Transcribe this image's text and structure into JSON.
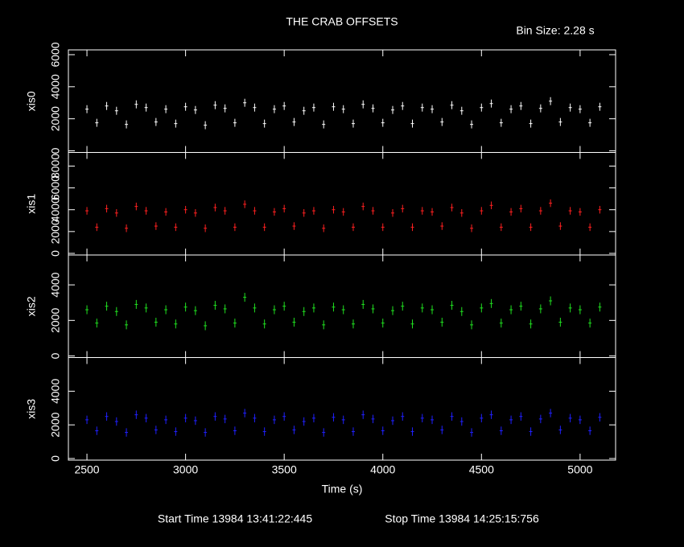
{
  "title": "THE CRAB OFFSETS",
  "bin_size": "Bin Size: 2.28 s",
  "start_time": "Start Time 13984 13:41:22:445",
  "stop_time": "Stop Time 13984 14:25:15:756",
  "chart_data": [
    {
      "type": "errorbar",
      "ylabel": "xis0",
      "color": "#ffffff",
      "ylim": [
        -100,
        6300
      ],
      "yticks": [
        0,
        2000,
        4000,
        6000
      ],
      "error": 250,
      "x": [
        2500,
        2550,
        2600,
        2650,
        2700,
        2750,
        2800,
        2850,
        2900,
        2950,
        3000,
        3050,
        3100,
        3150,
        3200,
        3250,
        3300,
        3350,
        3400,
        3450,
        3500,
        3550,
        3600,
        3650,
        3700,
        3750,
        3800,
        3850,
        3900,
        3950,
        4000,
        4050,
        4100,
        4150,
        4200,
        4250,
        4300,
        4350,
        4400,
        4450,
        4500,
        4550,
        4600,
        4650,
        4700,
        4750,
        4800,
        4850,
        4900,
        4950,
        5000,
        5050,
        5100
      ],
      "values": [
        2600,
        1750,
        2800,
        2500,
        1650,
        2900,
        2700,
        1800,
        2600,
        1700,
        2750,
        2550,
        1600,
        2850,
        2650,
        1750,
        3000,
        2700,
        1700,
        2600,
        2800,
        1800,
        2500,
        2700,
        1650,
        2750,
        2600,
        1700,
        2900,
        2650,
        1750,
        2550,
        2800,
        1700,
        2700,
        2600,
        1800,
        2850,
        2500,
        1650,
        2700,
        2950,
        1750,
        2600,
        2800,
        1700,
        2650,
        3100,
        1800,
        2700,
        2600,
        1750,
        2750
      ]
    },
    {
      "type": "errorbar",
      "ylabel": "xis1",
      "color": "#ff2020",
      "ylim": [
        -150,
        9250
      ],
      "yticks": [
        0,
        2000,
        4000,
        6000,
        8000
      ],
      "error": 350,
      "x": [
        2500,
        2550,
        2600,
        2650,
        2700,
        2750,
        2800,
        2850,
        2900,
        2950,
        3000,
        3050,
        3100,
        3150,
        3200,
        3250,
        3300,
        3350,
        3400,
        3450,
        3500,
        3550,
        3600,
        3650,
        3700,
        3750,
        3800,
        3850,
        3900,
        3950,
        4000,
        4050,
        4100,
        4150,
        4200,
        4250,
        4300,
        4350,
        4400,
        4450,
        4500,
        4550,
        4600,
        4650,
        4700,
        4750,
        4800,
        4850,
        4900,
        4950,
        5000,
        5050,
        5100
      ],
      "values": [
        3900,
        2400,
        4100,
        3700,
        2300,
        4300,
        3900,
        2500,
        3800,
        2400,
        4000,
        3700,
        2300,
        4200,
        3900,
        2400,
        4500,
        3900,
        2400,
        3800,
        4100,
        2500,
        3700,
        3900,
        2300,
        4000,
        3800,
        2400,
        4300,
        3900,
        2400,
        3700,
        4100,
        2400,
        3900,
        3800,
        2500,
        4200,
        3700,
        2300,
        3900,
        4400,
        2400,
        3800,
        4100,
        2400,
        3900,
        4600,
        2500,
        3900,
        3800,
        2400,
        4000
      ]
    },
    {
      "type": "errorbar",
      "ylabel": "xis2",
      "color": "#20e020",
      "ylim": [
        -90,
        5680
      ],
      "yticks": [
        0,
        2000,
        4000
      ],
      "error": 250,
      "x": [
        2500,
        2550,
        2600,
        2650,
        2700,
        2750,
        2800,
        2850,
        2900,
        2950,
        3000,
        3050,
        3100,
        3150,
        3200,
        3250,
        3300,
        3350,
        3400,
        3450,
        3500,
        3550,
        3600,
        3650,
        3700,
        3750,
        3800,
        3850,
        3900,
        3950,
        4000,
        4050,
        4100,
        4150,
        4200,
        4250,
        4300,
        4350,
        4400,
        4450,
        4500,
        4550,
        4600,
        4650,
        4700,
        4750,
        4800,
        4850,
        4900,
        4950,
        5000,
        5050,
        5100
      ],
      "values": [
        2600,
        1850,
        2800,
        2500,
        1750,
        2900,
        2700,
        1900,
        2600,
        1800,
        2750,
        2550,
        1700,
        2850,
        2650,
        1850,
        3300,
        2700,
        1800,
        2600,
        2800,
        1900,
        2500,
        2700,
        1750,
        2750,
        2600,
        1800,
        2900,
        2650,
        1850,
        2550,
        2800,
        1800,
        2700,
        2600,
        1900,
        2850,
        2500,
        1750,
        2700,
        2950,
        1850,
        2600,
        2800,
        1800,
        2650,
        3100,
        1900,
        2700,
        2600,
        1850,
        2750
      ]
    },
    {
      "type": "errorbar",
      "ylabel": "xis3",
      "color": "#2020ff",
      "ylim": [
        -95,
        6000
      ],
      "yticks": [
        0,
        2000,
        4000
      ],
      "error": 250,
      "xlabel": "Time (s)",
      "xlim": [
        2406,
        5180
      ],
      "xticks": [
        2500,
        3000,
        3500,
        4000,
        4500,
        5000
      ],
      "x": [
        2500,
        2550,
        2600,
        2650,
        2700,
        2750,
        2800,
        2850,
        2900,
        2950,
        3000,
        3050,
        3100,
        3150,
        3200,
        3250,
        3300,
        3350,
        3400,
        3450,
        3500,
        3550,
        3600,
        3650,
        3700,
        3750,
        3800,
        3850,
        3900,
        3950,
        4000,
        4050,
        4100,
        4150,
        4200,
        4250,
        4300,
        4350,
        4400,
        4450,
        4500,
        4550,
        4600,
        4650,
        4700,
        4750,
        4800,
        4850,
        4900,
        4950,
        5000,
        5050,
        5100
      ],
      "values": [
        2300,
        1650,
        2500,
        2200,
        1550,
        2600,
        2400,
        1700,
        2300,
        1600,
        2400,
        2250,
        1550,
        2500,
        2350,
        1650,
        2700,
        2400,
        1600,
        2300,
        2500,
        1700,
        2200,
        2400,
        1550,
        2450,
        2300,
        1600,
        2600,
        2350,
        1650,
        2250,
        2500,
        1600,
        2400,
        2300,
        1700,
        2500,
        2200,
        1550,
        2400,
        2600,
        1650,
        2300,
        2500,
        1600,
        2350,
        2700,
        1700,
        2400,
        2300,
        1650,
        2450
      ]
    }
  ]
}
